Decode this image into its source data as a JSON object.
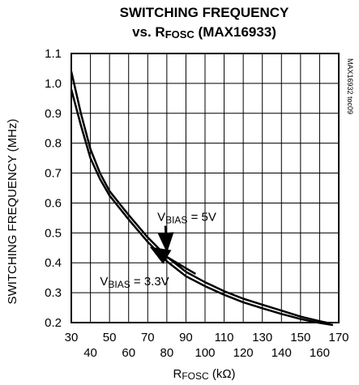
{
  "chart_data": {
    "type": "line",
    "title_line1": "SWITCHING FREQUENCY",
    "title_line2_prefix": "vs. R",
    "title_line2_sub": "FOSC",
    "title_line2_suffix": " (MAX16933)",
    "xlabel_prefix": "R",
    "xlabel_sub": "FOSC",
    "xlabel_suffix": " (kΩ)",
    "ylabel": "SWITCHING FREQUENCY (MHz)",
    "side_id": "MAX16932 toc09",
    "xlim": [
      30,
      170
    ],
    "ylim": [
      0.2,
      1.1
    ],
    "x_ticks_top_row": [
      "30",
      "50",
      "70",
      "90",
      "110",
      "130",
      "150",
      "170"
    ],
    "x_ticks_bottom_row": [
      "40",
      "60",
      "80",
      "100",
      "120",
      "140",
      "160"
    ],
    "y_ticks": [
      "0.2",
      "0.3",
      "0.4",
      "0.5",
      "0.6",
      "0.7",
      "0.8",
      "0.9",
      "1.0",
      "1.1"
    ],
    "x_grid_values": [
      30,
      40,
      50,
      60,
      70,
      80,
      90,
      100,
      110,
      120,
      130,
      140,
      150,
      160,
      170
    ],
    "y_grid_values": [
      0.2,
      0.3,
      0.4,
      0.5,
      0.6,
      0.7,
      0.8,
      0.9,
      1.0,
      1.1
    ],
    "grid": true,
    "series": [
      {
        "name_prefix": "V",
        "name_sub": "BIAS",
        "name_suffix": " = 5V",
        "x": [
          30,
          35,
          40,
          45,
          50,
          60,
          70,
          80,
          90,
          100,
          110,
          120,
          130,
          140,
          150,
          160,
          165
        ],
        "y": [
          1.04,
          0.9,
          0.78,
          0.7,
          0.64,
          0.56,
          0.485,
          0.42,
          0.37,
          0.335,
          0.305,
          0.28,
          0.26,
          0.24,
          0.22,
          0.205,
          0.198
        ]
      },
      {
        "name_prefix": "V",
        "name_sub": "BIAS",
        "name_suffix": " = 3.3V",
        "x": [
          30,
          35,
          40,
          45,
          50,
          60,
          70,
          80,
          90,
          100,
          110,
          120,
          130,
          140,
          150,
          160,
          167
        ],
        "y": [
          0.98,
          0.86,
          0.75,
          0.68,
          0.625,
          0.545,
          0.47,
          0.405,
          0.355,
          0.322,
          0.293,
          0.268,
          0.248,
          0.229,
          0.212,
          0.199,
          0.192
        ]
      }
    ],
    "annotations": [
      {
        "series_index": 0,
        "label_x": 75,
        "label_y": 0.54,
        "arrow_to_x": 80,
        "arrow_to_y": 0.44
      },
      {
        "series_index": 1,
        "label_x": 45,
        "label_y": 0.325,
        "arrow_to_x": 72,
        "arrow_to_y": 0.45
      }
    ]
  }
}
